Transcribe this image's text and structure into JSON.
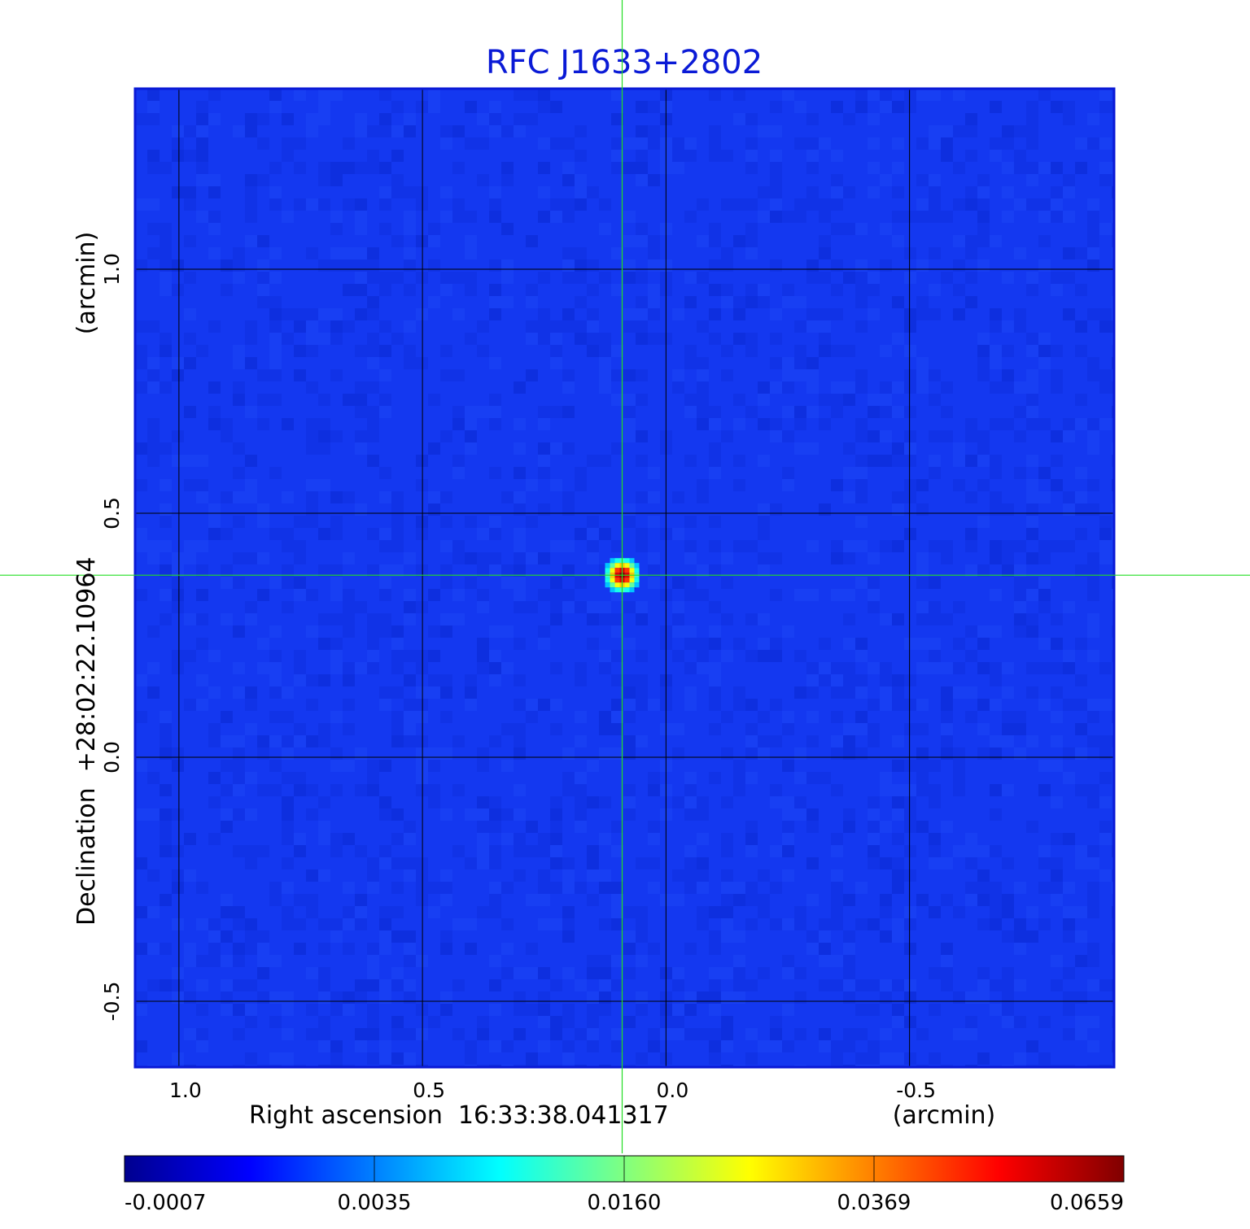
{
  "chart_data": {
    "type": "heatmap",
    "title": "RFC J1633+2802",
    "xlabel": "Right ascension  16:33:38.041317",
    "xunit": "(arcmin)",
    "ylabel": "Declination  +28:02:22.10964",
    "yunit": "(arcmin)",
    "x_axis_reversed": true,
    "xlim": [
      1.09,
      -0.92
    ],
    "ylim": [
      -0.635,
      1.37
    ],
    "x_ticks": [
      1.0,
      0.5,
      0.0,
      -0.5
    ],
    "x_tick_labels": [
      "1.0",
      "0.5",
      "0.0",
      "-0.5"
    ],
    "y_ticks": [
      -0.5,
      0.0,
      0.5,
      1.0
    ],
    "y_tick_labels": [
      "-0.5",
      "0.0",
      "0.5",
      "1.0"
    ],
    "grid": true,
    "crosshair": {
      "x": 0.09,
      "y": 0.373
    },
    "source_peak": {
      "x": 0.09,
      "y": 0.373,
      "value": 0.0659
    },
    "background_level": 0.0018,
    "colormap": "jet",
    "colorbar_ticks": [
      -0.0007,
      0.0035,
      0.016,
      0.0369,
      0.0659
    ],
    "colorbar_labels": [
      "-0.0007",
      "0.0035",
      "0.0160",
      "0.0369",
      "0.0659"
    ],
    "colorbar_range": [
      -0.0007,
      0.0659
    ],
    "colors": {
      "title": "#0a1ad6",
      "crosshair": "#22dd22",
      "grid": "#000000",
      "background_map": "#1438f0"
    }
  }
}
